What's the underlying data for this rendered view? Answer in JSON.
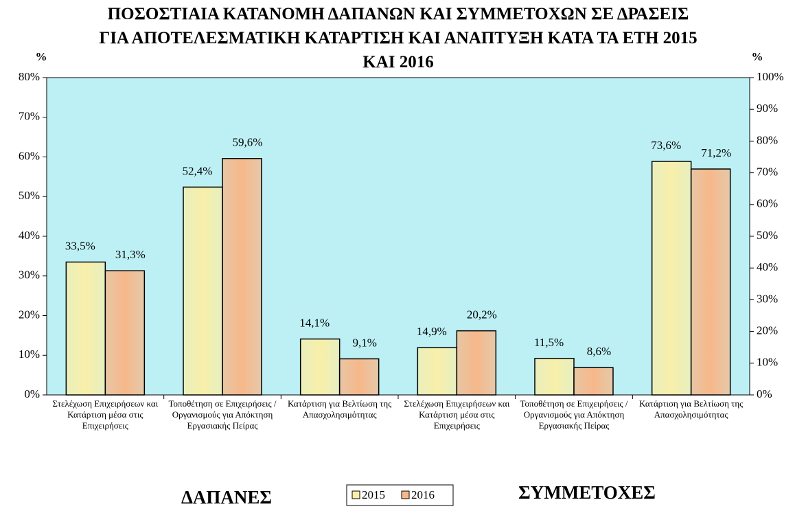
{
  "chart_data": {
    "type": "bar",
    "title": "ΠΟΣΟΣΤΙΑΙΑ ΚΑΤΑΝΟΜΗ ΔΑΠΑΝΩΝ ΚΑΙ ΣΥΜΜΕΤΟΧΩΝ ΣΕ ΔΡΑΣΕΙΣ ΓΙΑ ΑΠΟΤΕΛΕΣΜΑΤΙΚΗ ΚΑΤΑΡΤΙΣΗ ΚΑΙ ΑΝΑΠΤΥΞΗ ΚΑΤΑ ΤΑ ΕΤΗ 2015 ΚΑΙ 2016",
    "ylabel": "%",
    "y2label": "%",
    "categories": [
      "Στελέχωση Επιχειρήσεων και Κατάρτιση μέσα στις Επιχειρήσεις",
      "Τοποθέτηση σε Επιχειρήσεις / Οργανισμούς για Απόκτηση Εργασιακής Πείρας",
      "Κατάρτιση για Βελτίωση της Απασχολησιμότητας",
      "Στελέχωση Επιχειρήσεων και Κατάρτιση μέσα στις Επιχειρήσεις",
      "Τοποθέτηση σε Επιχειρήσεις / Οργανισμούς για Απόκτηση Εργασιακής Πείρας",
      "Κατάρτιση για Βελτίωση της Απασχολησιμότητας"
    ],
    "category_axis": [
      "y",
      "y",
      "y",
      "y2",
      "y2",
      "y2"
    ],
    "groups": [
      "ΔΑΠΑΝΕΣ",
      "ΣΥΜΜΕΤΟΧΕΣ"
    ],
    "series": [
      {
        "name": "2015",
        "color": "#f8efaa",
        "values": [
          33.5,
          52.4,
          14.1,
          14.9,
          11.5,
          73.6
        ],
        "value_labels": [
          "33,5%",
          "52,4%",
          "14,1%",
          "14,9%",
          "11,5%",
          "73,6%"
        ]
      },
      {
        "name": "2016",
        "color": "#f6b88a",
        "values": [
          31.3,
          59.6,
          9.1,
          20.2,
          8.6,
          71.2
        ],
        "value_labels": [
          "31,3%",
          "59,6%",
          "9,1%",
          "20,2%",
          "8,6%",
          "71,2%"
        ]
      }
    ],
    "ylim": [
      0,
      80
    ],
    "yticks": [
      {
        "value": 0,
        "label": "0%"
      },
      {
        "value": 10,
        "label": "10%"
      },
      {
        "value": 20,
        "label": "20%"
      },
      {
        "value": 30,
        "label": "30%"
      },
      {
        "value": 40,
        "label": "40%"
      },
      {
        "value": 50,
        "label": "50%"
      },
      {
        "value": 60,
        "label": "60%"
      },
      {
        "value": 70,
        "label": "70%"
      },
      {
        "value": 80,
        "label": "80%"
      }
    ],
    "y2lim": [
      0,
      100
    ],
    "y2ticks": [
      {
        "value": 0,
        "label": "0%"
      },
      {
        "value": 10,
        "label": "10%"
      },
      {
        "value": 20,
        "label": "20%"
      },
      {
        "value": 30,
        "label": "30%"
      },
      {
        "value": 40,
        "label": "40%"
      },
      {
        "value": 50,
        "label": "50%"
      },
      {
        "value": 60,
        "label": "60%"
      },
      {
        "value": 70,
        "label": "70%"
      },
      {
        "value": 80,
        "label": "80%"
      },
      {
        "value": 90,
        "label": "90%"
      },
      {
        "value": 100,
        "label": "100%"
      }
    ],
    "background": "#bdf0f4",
    "legend": "bottom"
  }
}
